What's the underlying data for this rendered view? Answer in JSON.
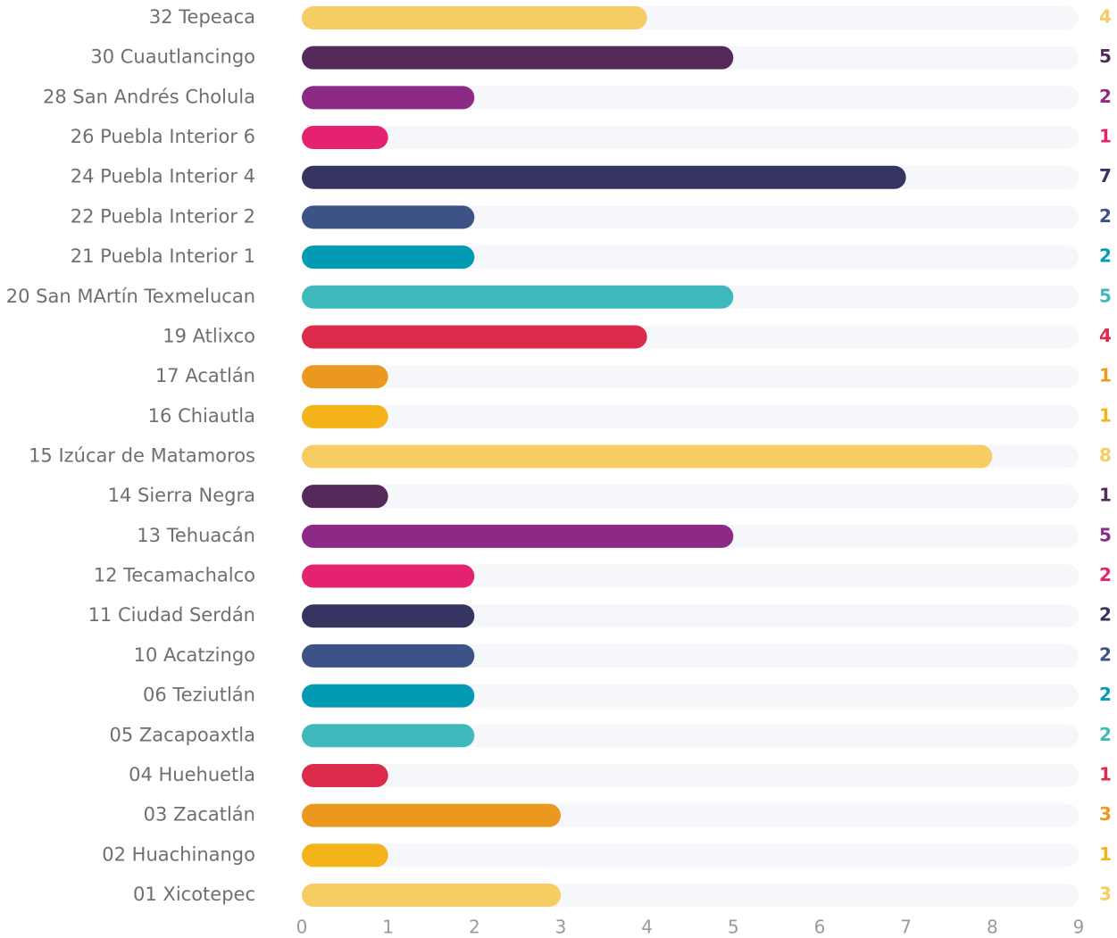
{
  "chart_data": {
    "type": "bar",
    "orientation": "horizontal",
    "categories": [
      "32 Tepeaca",
      "30 Cuautlancingo",
      "28 San Andrés Cholula",
      "26 Puebla Interior 6",
      "24 Puebla Interior 4",
      "22 Puebla Interior 2",
      "21 Puebla Interior 1",
      "20 San MArtín Texmelucan",
      "19 Atlixco",
      "17 Acatlán",
      "16 Chiautla",
      "15 Izúcar de Matamoros",
      "14 Sierra Negra",
      "13 Tehuacán",
      "12 Tecamachalco",
      "11 Ciudad Serdán",
      "10 Acatzingo",
      "06 Teziutlán",
      "05 Zacapoaxtla",
      "04 Huehuetla",
      "03 Zacatlán",
      "02 Huachinango",
      "01 Xicotepec"
    ],
    "values": [
      4,
      5,
      2,
      1,
      7,
      2,
      2,
      5,
      4,
      1,
      1,
      8,
      1,
      5,
      2,
      2,
      2,
      2,
      2,
      1,
      3,
      1,
      3
    ],
    "colors": [
      "#f6cd63",
      "#552a5a",
      "#8c2a85",
      "#e5226f",
      "#363561",
      "#3d5287",
      "#029bb3",
      "#3fb9bb",
      "#dc2b4b",
      "#eb981f",
      "#f4b318",
      "#f6cd63",
      "#552a5a",
      "#8c2a85",
      "#e5226f",
      "#363561",
      "#3d5287",
      "#029bb3",
      "#3fb9bb",
      "#dc2b4b",
      "#eb981f",
      "#f4b318",
      "#f6cd63"
    ],
    "xlim": [
      0,
      9
    ],
    "xticks": [
      0,
      1,
      2,
      3,
      4,
      5,
      6,
      7,
      8,
      9
    ]
  }
}
